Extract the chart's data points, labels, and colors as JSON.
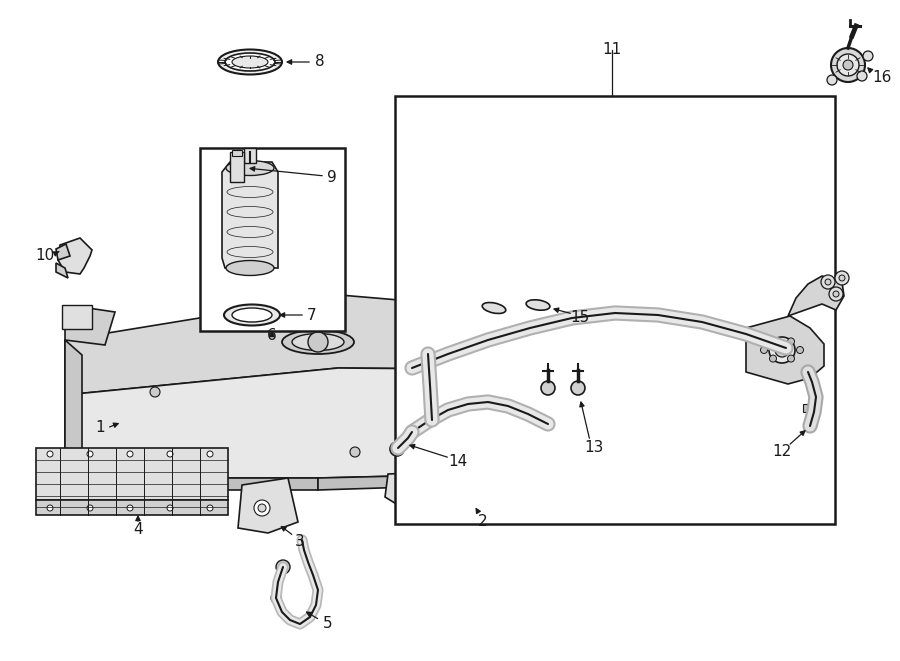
{
  "bg_color": "#ffffff",
  "lc": "#1a1a1a",
  "fig_w": 9.0,
  "fig_h": 6.61,
  "dpi": 100
}
